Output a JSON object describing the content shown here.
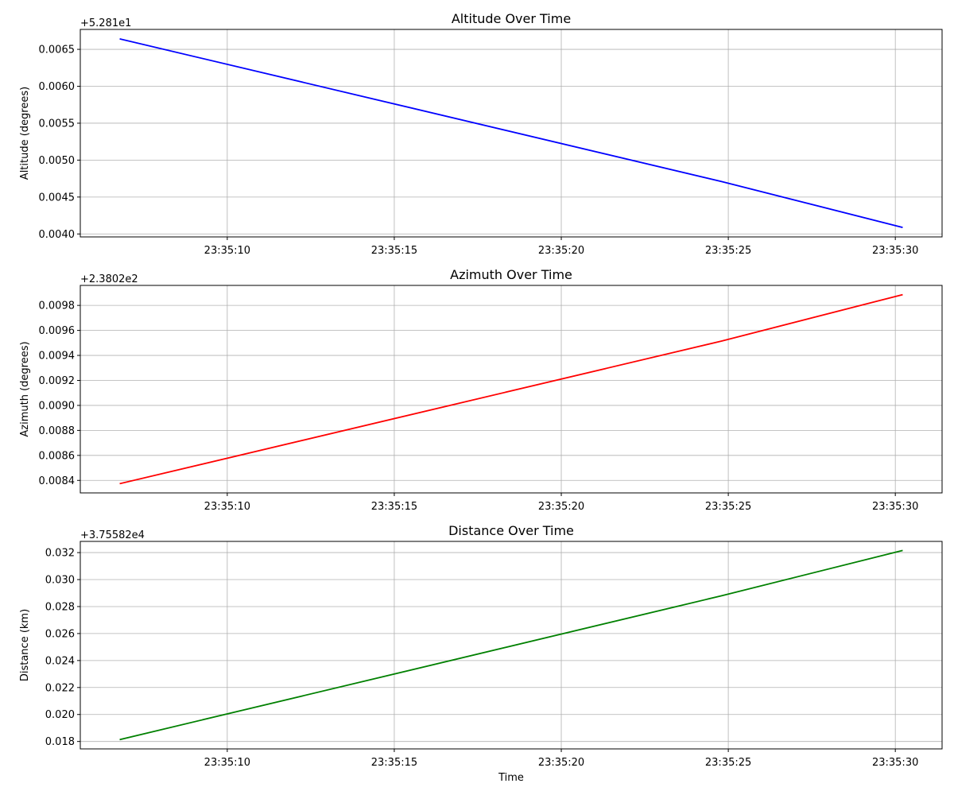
{
  "chart_data": [
    {
      "type": "line",
      "title": "Altitude Over Time",
      "ylabel": "Altitude (degrees)",
      "xlabel": "",
      "offset_text": "+5.281e1",
      "color": "#0000ff",
      "grid": true,
      "x": [
        "23:35:06.8",
        "23:35:24.8",
        "23:35:30.2"
      ],
      "y": [
        52.81664,
        52.81471,
        52.81409
      ],
      "yticks": [
        0.004,
        0.0045,
        0.005,
        0.0055,
        0.006,
        0.0065
      ],
      "ytick_labels": [
        "0.0040",
        "0.0045",
        "0.0050",
        "0.0055",
        "0.0060",
        "0.0065"
      ],
      "xticks": [
        "23:35:10",
        "23:35:15",
        "23:35:20",
        "23:35:25",
        "23:35:30"
      ],
      "xlim": [
        "23:35:05.6",
        "23:35:31.4"
      ],
      "ylim_offset": [
        0.00396,
        0.00677
      ]
    },
    {
      "type": "line",
      "title": "Azimuth Over Time",
      "ylabel": "Azimuth (degrees)",
      "xlabel": "",
      "offset_text": "+2.3802e2",
      "color": "#ff0000",
      "grid": true,
      "x": [
        "23:35:06.8",
        "23:35:24.8",
        "23:35:30.2"
      ],
      "y": [
        238.028375,
        238.029515,
        238.029885
      ],
      "yticks": [
        0.0084,
        0.0086,
        0.0088,
        0.009,
        0.0092,
        0.0094,
        0.0096,
        0.0098
      ],
      "ytick_labels": [
        "0.0084",
        "0.0086",
        "0.0088",
        "0.0090",
        "0.0092",
        "0.0094",
        "0.0096",
        "0.0098"
      ],
      "xticks": [
        "23:35:10",
        "23:35:15",
        "23:35:20",
        "23:35:25",
        "23:35:30"
      ],
      "xlim": [
        "23:35:05.6",
        "23:35:31.4"
      ],
      "ylim_offset": [
        0.0083,
        0.00996
      ]
    },
    {
      "type": "line",
      "title": "Distance Over Time",
      "ylabel": "Distance (km)",
      "xlabel": "Time",
      "offset_text": "+3.75582e4",
      "color": "#008000",
      "grid": true,
      "x": [
        "23:35:06.8",
        "23:35:24.8",
        "23:35:30.2"
      ],
      "y": [
        37558.21815,
        37558.2288,
        37558.23215
      ],
      "yticks": [
        0.018,
        0.02,
        0.022,
        0.024,
        0.026,
        0.028,
        0.03,
        0.032
      ],
      "ytick_labels": [
        "0.018",
        "0.020",
        "0.022",
        "0.024",
        "0.026",
        "0.028",
        "0.030",
        "0.032"
      ],
      "xticks": [
        "23:35:10",
        "23:35:15",
        "23:35:20",
        "23:35:25",
        "23:35:30"
      ],
      "xlim": [
        "23:35:05.6",
        "23:35:31.4"
      ],
      "ylim_offset": [
        0.01745,
        0.03283
      ]
    }
  ]
}
